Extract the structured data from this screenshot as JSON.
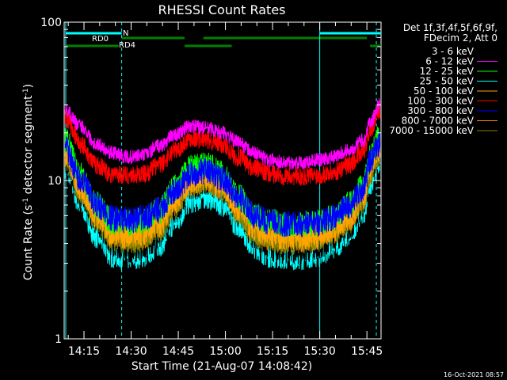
{
  "chart_data": {
    "type": "line",
    "title": "RHESSI Count Rates",
    "xlabel": "Start Time (21-Aug-07 14:08:42)",
    "ylabel_main": "Count Rate (s",
    "ylabel_sup": "-1",
    "ylabel_mid": " detector segment",
    "ylabel_end": ")",
    "y_scale": "log",
    "ylim": [
      1,
      100
    ],
    "y_ticks": [
      1,
      10,
      100
    ],
    "y_tick_labels": [
      "1",
      "10",
      "100"
    ],
    "x_tick_labels": [
      "14:15",
      "14:30",
      "14:45",
      "15:00",
      "15:15",
      "15:30",
      "15:45"
    ],
    "x_tick_minutes": [
      15,
      30,
      45,
      60,
      75,
      90,
      105
    ],
    "xlim_minutes": [
      8.7,
      109.5
    ],
    "legend_header": [
      "Det 1f,3f,4f,5f,6f,9f,",
      "FDecim 2, Att 0"
    ],
    "series": [
      {
        "name": "3 - 6 keV",
        "color": "#000000",
        "values": [
          13.5,
          8.0,
          5.5,
          3.8,
          3.6,
          3.8,
          4.5,
          6.5,
          9.0,
          9.8,
          8.8,
          6.5,
          4.5,
          3.7,
          3.5,
          3.6,
          3.8,
          4.2,
          5.0,
          7.0,
          11.0,
          15.0
        ]
      },
      {
        "name": "6 - 12 keV",
        "color": "#ff00ff",
        "values": [
          28.0,
          22.0,
          17.0,
          15.0,
          14.0,
          14.5,
          16.5,
          19.5,
          22.0,
          21.5,
          20.0,
          17.5,
          15.0,
          13.5,
          13.0,
          13.0,
          13.5,
          14.0,
          15.5,
          18.0,
          23.0,
          30.0
        ]
      },
      {
        "name": "12 - 25 keV",
        "color": "#00ff00",
        "values": [
          18.0,
          11.0,
          7.0,
          5.5,
          5.4,
          5.6,
          6.5,
          9.0,
          12.0,
          12.5,
          11.0,
          8.0,
          6.0,
          5.5,
          5.3,
          5.3,
          5.4,
          5.8,
          7.0,
          9.5,
          14.0,
          19.0
        ]
      },
      {
        "name": "25 - 50 keV",
        "color": "#00ffff",
        "values": [
          12.5,
          7.0,
          4.5,
          3.4,
          3.3,
          3.4,
          4.0,
          5.5,
          7.5,
          8.0,
          7.2,
          5.3,
          3.9,
          3.4,
          3.3,
          3.3,
          3.4,
          3.8,
          4.5,
          6.5,
          9.5,
          13.0
        ]
      },
      {
        "name": "50 - 100 keV",
        "color": "#ffa500",
        "values": [
          15.0,
          9.0,
          6.0,
          4.6,
          4.5,
          4.6,
          5.4,
          7.5,
          10.0,
          10.5,
          9.3,
          6.8,
          5.0,
          4.5,
          4.4,
          4.4,
          4.5,
          4.9,
          5.8,
          8.0,
          12.0,
          16.0
        ]
      },
      {
        "name": "100 - 300 keV",
        "color": "#ff0000",
        "values": [
          25.0,
          17.0,
          12.5,
          11.0,
          10.8,
          11.0,
          12.5,
          15.5,
          18.5,
          18.0,
          16.8,
          14.0,
          12.0,
          11.0,
          10.7,
          10.6,
          10.8,
          11.2,
          12.5,
          15.5,
          20.5,
          28.0
        ]
      },
      {
        "name": "300 - 800 keV",
        "color": "#0000ff",
        "values": [
          16.0,
          10.0,
          7.0,
          5.8,
          5.6,
          5.8,
          6.5,
          8.5,
          11.0,
          11.5,
          10.3,
          7.8,
          6.0,
          5.5,
          5.3,
          5.3,
          5.4,
          5.8,
          6.8,
          9.0,
          13.0,
          17.0
        ]
      },
      {
        "name": "800 - 7000 keV",
        "color": "#ff8c00",
        "values": [
          14.5,
          8.8,
          5.9,
          4.5,
          4.4,
          4.5,
          5.2,
          7.2,
          9.7,
          10.2,
          9.0,
          6.6,
          4.8,
          4.4,
          4.3,
          4.3,
          4.4,
          4.8,
          5.7,
          7.8,
          11.5,
          15.5
        ]
      },
      {
        "name": "7000 - 15000 keV",
        "color": "#808000",
        "values": [
          14.0,
          8.5,
          5.7,
          4.3,
          4.2,
          4.3,
          5.0,
          7.0,
          9.4,
          10.0,
          8.8,
          6.4,
          4.6,
          4.2,
          4.1,
          4.1,
          4.2,
          4.6,
          5.5,
          7.5,
          11.2,
          15.0
        ]
      }
    ],
    "x_minutes": [
      9,
      14,
      19,
      24,
      29,
      34,
      39,
      44,
      49,
      54,
      59,
      64,
      69,
      74,
      79,
      84,
      89,
      94,
      99,
      104,
      106,
      109
    ],
    "annotations": {
      "n_label": "N",
      "rd0_label": "RD0",
      "rd4_label": "RD4"
    },
    "vertical_lines_minutes": [
      {
        "t": 9.2,
        "style": "solid"
      },
      {
        "t": 27.0,
        "style": "dashed"
      },
      {
        "t": 90.0,
        "style": "solid"
      },
      {
        "t": 108.0,
        "style": "dashed"
      }
    ],
    "flag_bars": [
      {
        "label": "N",
        "color": "#00ffff",
        "row": "top",
        "segments": [
          [
            9.2,
            27.0
          ],
          [
            90.0,
            109.5
          ]
        ]
      },
      {
        "label": "RD0",
        "color": "#008000",
        "row": "mid",
        "segments": [
          [
            27.0,
            47.0
          ],
          [
            53.0,
            105.0
          ]
        ]
      },
      {
        "label": "RD4",
        "color": "#008000",
        "row": "low",
        "segments": [
          [
            9.2,
            26.0
          ],
          [
            47.0,
            62.0
          ],
          [
            106.0,
            109.5
          ]
        ]
      }
    ]
  },
  "footer": {
    "timestamp": "16-Oct-2021 08:57"
  }
}
